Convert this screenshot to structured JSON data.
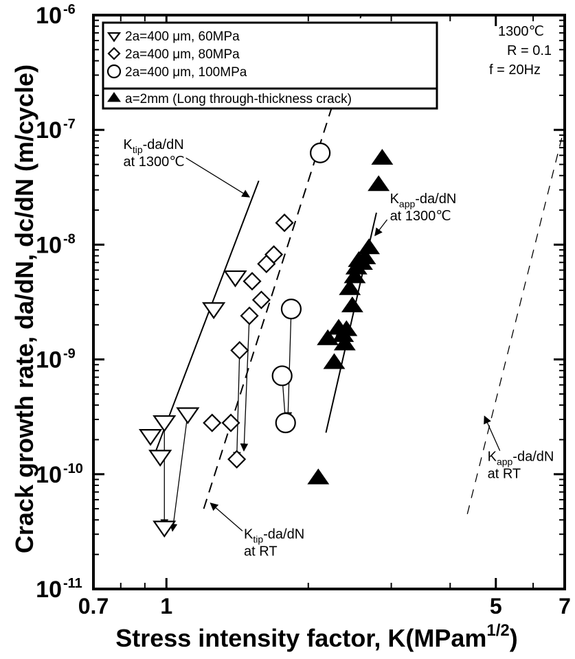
{
  "chart_data": {
    "type": "scatter",
    "xlabel": "Stress intensity factor, K(MPam",
    "xlabel_exp": "1/2",
    "xlabel_suffix": ")",
    "ylabel": "Crack growth rate, da/dN, dc/dN (m/cycle)",
    "xscale": "log",
    "yscale": "log",
    "xlim": [
      0.7,
      7
    ],
    "ylim": [
      1e-11,
      1e-06
    ],
    "x_ticks": [
      {
        "value": 0.7,
        "label": "0.7"
      },
      {
        "value": 1,
        "label": "1"
      },
      {
        "value": 5,
        "label": "5"
      },
      {
        "value": 7,
        "label": "7"
      }
    ],
    "y_ticks": [
      {
        "value": 1e-06,
        "base": "10",
        "exp": "-6"
      },
      {
        "value": 1e-07,
        "base": "10",
        "exp": "-7"
      },
      {
        "value": 1e-08,
        "base": "10",
        "exp": "-8"
      },
      {
        "value": 1e-09,
        "base": "10",
        "exp": "-9"
      },
      {
        "value": 1e-10,
        "base": "10",
        "exp": "-10"
      },
      {
        "value": 1e-11,
        "base": "10",
        "exp": "-11"
      }
    ],
    "grid": false,
    "legend_position": "top-left",
    "conditions": [
      "1300℃",
      "R = 0.1",
      "f = 20Hz"
    ],
    "series": [
      {
        "name": "2a=400 μm, 60MPa",
        "marker": "triangle-down-open",
        "points": [
          {
            "x": 0.925,
            "y": 2.2e-10
          },
          {
            "x": 0.97,
            "y": 1.45e-10
          },
          {
            "x": 0.99,
            "y": 2.9e-10
          },
          {
            "x": 0.99,
            "y": 3.5e-11
          },
          {
            "x": 1.11,
            "y": 3.4e-10
          },
          {
            "x": 1.26,
            "y": 2.8e-09
          },
          {
            "x": 1.4,
            "y": 5.3e-09
          }
        ]
      },
      {
        "name": "2a=400 μm, 80MPa",
        "marker": "diamond-open",
        "points": [
          {
            "x": 1.25,
            "y": 2.8e-10
          },
          {
            "x": 1.37,
            "y": 2.8e-10
          },
          {
            "x": 1.41,
            "y": 1.35e-10
          },
          {
            "x": 1.43,
            "y": 1.2e-09
          },
          {
            "x": 1.5,
            "y": 2.4e-09
          },
          {
            "x": 1.52,
            "y": 4.8e-09
          },
          {
            "x": 1.59,
            "y": 3.3e-09
          },
          {
            "x": 1.63,
            "y": 6.8e-09
          },
          {
            "x": 1.69,
            "y": 8.2e-09
          },
          {
            "x": 1.78,
            "y": 1.55e-08
          }
        ]
      },
      {
        "name": "2a=400 μm, 100MPa",
        "marker": "circle-open",
        "points": [
          {
            "x": 1.76,
            "y": 7.2e-10
          },
          {
            "x": 1.79,
            "y": 2.8e-10
          },
          {
            "x": 1.84,
            "y": 2.75e-09
          },
          {
            "x": 2.12,
            "y": 6.3e-08
          }
        ]
      },
      {
        "name": "a=2mm (Long through-thickness crack)",
        "marker": "triangle-up-filled",
        "points": [
          {
            "x": 2.1,
            "y": 9.2e-11
          },
          {
            "x": 2.2,
            "y": 1.5e-09
          },
          {
            "x": 2.27,
            "y": 9.3e-10
          },
          {
            "x": 2.32,
            "y": 1.85e-09
          },
          {
            "x": 2.37,
            "y": 1.6e-09
          },
          {
            "x": 2.39,
            "y": 1.35e-09
          },
          {
            "x": 2.41,
            "y": 1.8e-09
          },
          {
            "x": 2.45,
            "y": 4.1e-09
          },
          {
            "x": 2.48,
            "y": 2.9e-09
          },
          {
            "x": 2.51,
            "y": 5.2e-09
          },
          {
            "x": 2.53,
            "y": 6.2e-09
          },
          {
            "x": 2.56,
            "y": 7.2e-09
          },
          {
            "x": 2.6,
            "y": 6.8e-09
          },
          {
            "x": 2.64,
            "y": 7.6e-09
          },
          {
            "x": 2.69,
            "y": 9.3e-09
          },
          {
            "x": 2.82,
            "y": 3.3e-08
          },
          {
            "x": 2.87,
            "y": 5.6e-08
          }
        ]
      }
    ],
    "connectors": [
      {
        "from": [
          0.99,
          2.9e-10
        ],
        "to": [
          0.99,
          3.5e-11
        ]
      },
      {
        "from": [
          1.11,
          3.4e-10
        ],
        "to": [
          1.03,
          3.2e-11
        ]
      },
      {
        "from": [
          1.43,
          1.2e-09
        ],
        "to": [
          1.41,
          1.35e-10
        ]
      },
      {
        "from": [
          1.5,
          2.4e-09
        ],
        "to": [
          1.46,
          1.6e-10
        ]
      },
      {
        "from": [
          1.76,
          7.2e-10
        ],
        "to": [
          1.79,
          2.8e-10
        ]
      },
      {
        "from": [
          1.84,
          2.75e-09
        ],
        "to": [
          1.81,
          3e-10
        ]
      }
    ],
    "fit_lines": [
      {
        "style": "solid",
        "thin": false,
        "from": [
          0.95,
          1.6e-10
        ],
        "to": [
          1.57,
          3.6e-08
        ]
      },
      {
        "style": "dashed",
        "thin": false,
        "from": [
          1.2,
          5e-11
        ],
        "to": [
          2.59,
          1e-06
        ]
      },
      {
        "style": "solid",
        "thin": false,
        "from": [
          2.18,
          2.3e-10
        ],
        "to": [
          2.79,
          1.9e-08
        ]
      },
      {
        "style": "dashed",
        "thin": true,
        "from": [
          4.35,
          4.5e-11
        ],
        "to": [
          6.9,
          8.5e-08
        ]
      }
    ],
    "annotations": [
      {
        "lines": [
          {
            "text": "K",
            "sub": "tip",
            "rest": "-da/dN"
          },
          {
            "text": "at 1300℃"
          }
        ],
        "at": [
          0.81,
          6.8e-08
        ],
        "arrow_from": [
          1.1,
          5.7e-08
        ],
        "arrow_to": [
          1.5,
          2.6e-08
        ]
      },
      {
        "lines": [
          {
            "text": "K",
            "sub": "app",
            "rest": "-da/dN"
          },
          {
            "text": "at 1300℃"
          }
        ],
        "at": [
          2.98,
          2.3e-08
        ],
        "arrow_from": [
          2.94,
          1.65e-08
        ],
        "arrow_to": [
          2.77,
          1.2e-08
        ]
      },
      {
        "lines": [
          {
            "text": "K",
            "sub": "tip",
            "rest": "-da/dN"
          },
          {
            "text": "at RT"
          }
        ],
        "at": [
          1.46,
          2.75e-11
        ],
        "arrow_from": [
          1.45,
          3.2e-11
        ],
        "arrow_to": [
          1.24,
          5.6e-11
        ]
      },
      {
        "lines": [
          {
            "text": "K",
            "sub": "app",
            "rest": "-da/dN"
          },
          {
            "text": "at RT"
          }
        ],
        "at": [
          4.8,
          1.3e-10
        ],
        "arrow_from": [
          5.1,
          1.6e-10
        ],
        "arrow_to": [
          4.73,
          3.2e-10
        ]
      }
    ]
  }
}
